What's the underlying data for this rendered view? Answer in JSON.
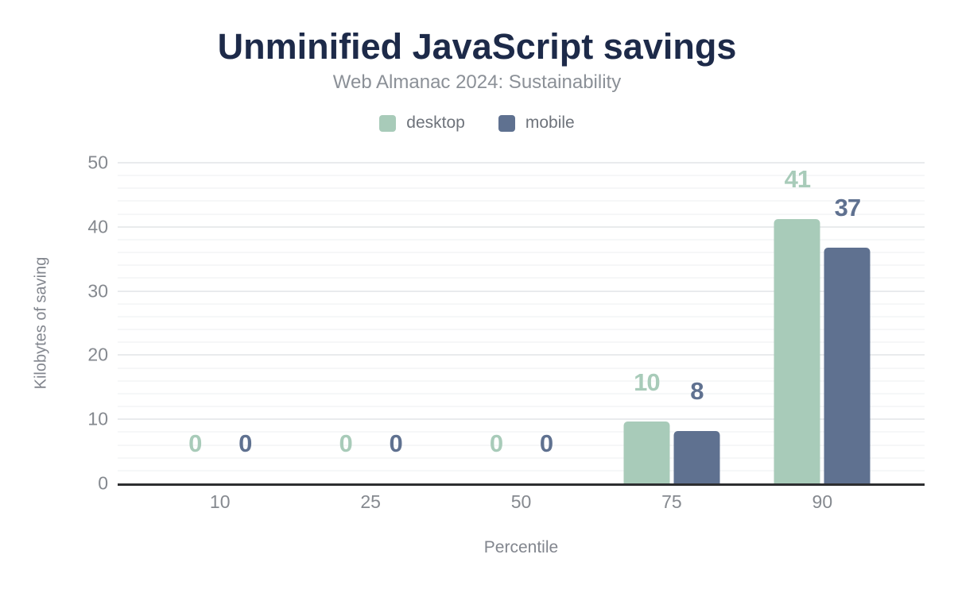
{
  "header": {
    "title": "Unminified JavaScript savings",
    "subtitle": "Web Almanac 2024: Sustainability"
  },
  "legend": [
    {
      "label": "desktop",
      "color": "#a8cbb9"
    },
    {
      "label": "mobile",
      "color": "#5f7190"
    }
  ],
  "axes": {
    "x_title": "Percentile",
    "y_title": "Kilobytes of saving"
  },
  "colors": {
    "title": "#1d2a49",
    "subtitle": "#8b9097",
    "axis_text": "#85898f",
    "axis_line": "#2d2e30",
    "grid_major": "#e9ebed",
    "grid_minor": "#f6f7f8",
    "desktop": "#a8cbb9",
    "mobile": "#5f7190"
  },
  "chart_data": {
    "type": "bar",
    "title": "Unminified JavaScript savings",
    "subtitle": "Web Almanac 2024: Sustainability",
    "categories": [
      "10",
      "25",
      "50",
      "75",
      "90"
    ],
    "series": [
      {
        "name": "desktop",
        "color": "#a8cbb9",
        "values": [
          0,
          0,
          0,
          10,
          41
        ],
        "bar_heights_kb": [
          0,
          0,
          0,
          9.6,
          41.2
        ]
      },
      {
        "name": "mobile",
        "color": "#5f7190",
        "values": [
          0,
          0,
          0,
          8,
          37
        ],
        "bar_heights_kb": [
          0,
          0,
          0,
          8.2,
          36.8
        ]
      }
    ],
    "xlabel": "Percentile",
    "ylabel": "Kilobytes of saving",
    "ylim": [
      0,
      50
    ],
    "yticks": [
      0,
      10,
      20,
      30,
      40,
      50
    ],
    "y_major_step": 10,
    "y_minor_step": 2,
    "grid": true,
    "legend_position": "top",
    "value_labels_shown": true
  }
}
